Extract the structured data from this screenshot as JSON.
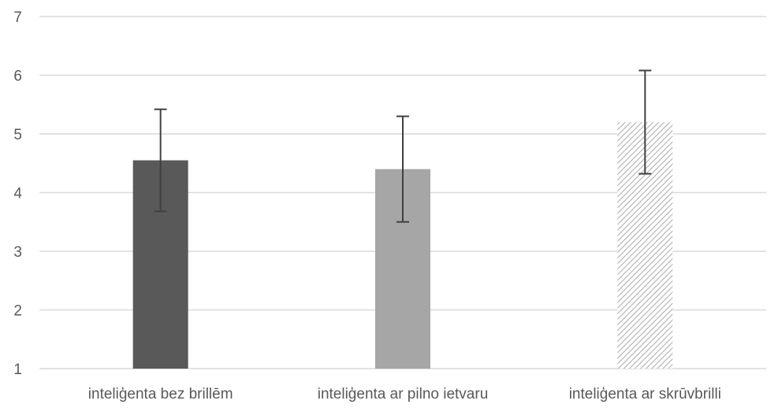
{
  "chart_data": {
    "type": "bar",
    "title": "",
    "xlabel": "",
    "ylabel": "",
    "categories": [
      "inteliģenta bez brillēm",
      "inteliģenta ar pilno ietvaru",
      "inteliģenta ar skrūvbrilli"
    ],
    "values": [
      4.55,
      4.4,
      5.2
    ],
    "error_low": [
      0.87,
      0.9,
      0.88
    ],
    "error_high": [
      0.87,
      0.9,
      0.88
    ],
    "ylim": [
      1,
      7
    ],
    "yticks": [
      "1",
      "2",
      "3",
      "4",
      "5",
      "6",
      "7"
    ],
    "grid": true,
    "legend": "none",
    "bar_styles": [
      {
        "fill": "#595959",
        "pattern": "solid"
      },
      {
        "fill": "#a6a6a6",
        "pattern": "solid"
      },
      {
        "fill": "#bfbfbf",
        "pattern": "diagonal-hatch"
      }
    ]
  }
}
